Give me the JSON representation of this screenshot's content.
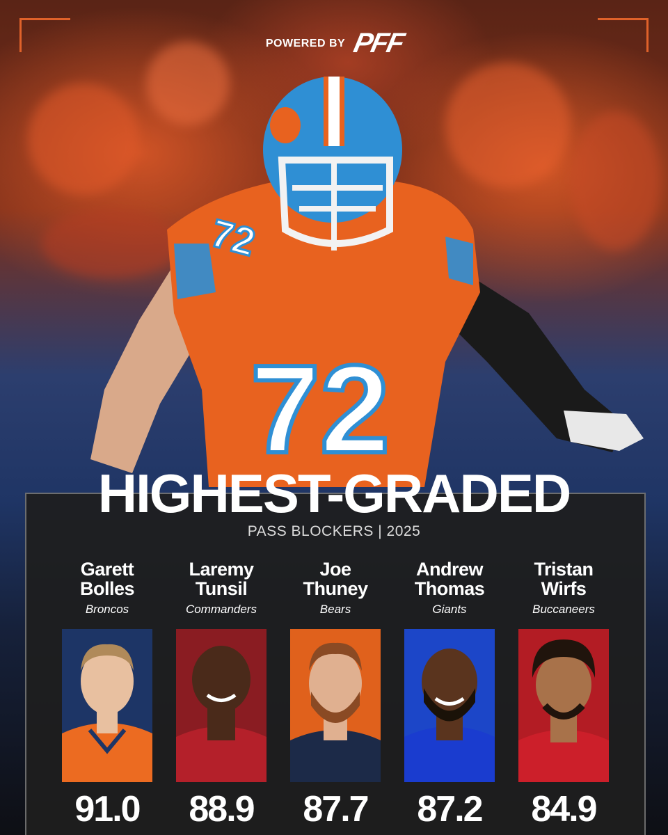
{
  "header": {
    "powered_by": "POWERED BY",
    "brand_logo_text": "PFF"
  },
  "title": "HIGHEST-GRADED",
  "subtitle": "PASS BLOCKERS | 2025",
  "hero": {
    "jersey_number": "72",
    "jersey_color": "#e8621f",
    "helmet_color": "#2f8fd4"
  },
  "players": [
    {
      "first": "Garett",
      "last": "Bolles",
      "team": "Broncos",
      "grade": "91.0",
      "bg": "#1d3566",
      "jersey": "#ec6b21",
      "skin": "#e8c0a0",
      "hair": "#b08a5a"
    },
    {
      "first": "Laremy",
      "last": "Tunsil",
      "team": "Commanders",
      "grade": "88.9",
      "bg": "#8a1c22",
      "jersey": "#b4202a",
      "skin": "#4a2a1a",
      "hair": "#2a1a10"
    },
    {
      "first": "Joe",
      "last": "Thuney",
      "team": "Bears",
      "grade": "87.7",
      "bg": "#e0611c",
      "jersey": "#1c2a48",
      "skin": "#e0b090",
      "hair": "#8a4a24"
    },
    {
      "first": "Andrew",
      "last": "Thomas",
      "team": "Giants",
      "grade": "87.2",
      "bg": "#1c46c8",
      "jersey": "#1a3ccf",
      "skin": "#5a341e",
      "hair": "#1a1208"
    },
    {
      "first": "Tristan",
      "last": "Wirfs",
      "team": "Buccaneers",
      "grade": "84.9",
      "bg": "#b31c24",
      "jersey": "#cc1f2a",
      "skin": "#a8724a",
      "hair": "#20140c"
    }
  ]
}
